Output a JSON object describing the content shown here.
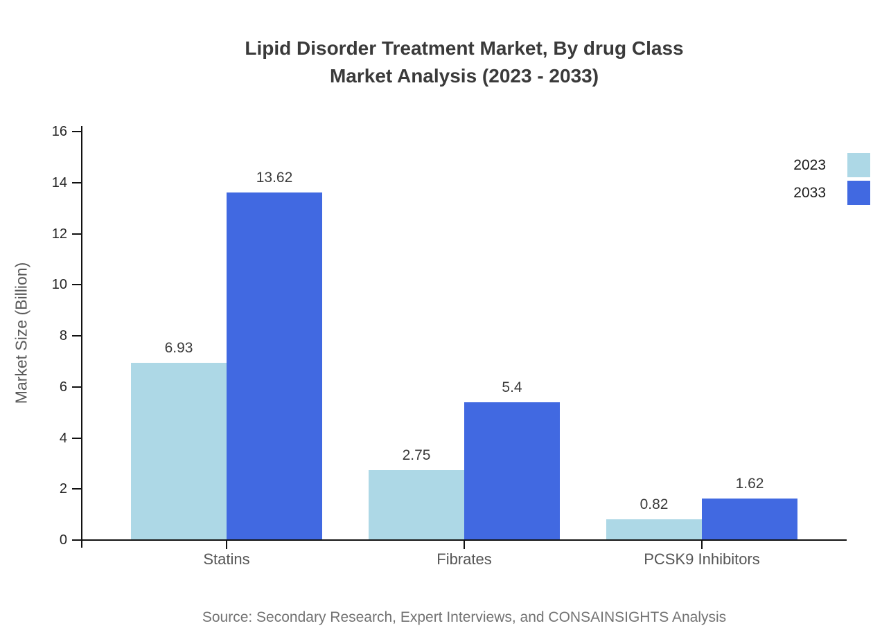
{
  "figure": {
    "title": "Lipid Disorder Treatment Market, By drug Class\nMarket Analysis (2023 - 2033)",
    "ylabel": "Market Size (Billion)",
    "source": "Source: Secondary Research, Expert Interviews, and CONSAINSIGHTS Analysis"
  },
  "chart_data": {
    "type": "bar",
    "title": "Lipid Disorder Treatment Market, By drug Class Market Analysis (2023 - 2033)",
    "xlabel": "",
    "ylabel": "Market Size (Billion)",
    "categories": [
      "Statins",
      "Fibrates",
      "PCSK9 Inhibitors"
    ],
    "series": [
      {
        "name": "2023",
        "color": "#ADD8E6",
        "values": [
          6.93,
          2.75,
          0.82
        ]
      },
      {
        "name": "2033",
        "color": "#4169E1",
        "values": [
          13.62,
          5.4,
          1.62
        ]
      }
    ],
    "ylim": [
      0,
      16
    ],
    "yticks": [
      0,
      2,
      4,
      6,
      8,
      10,
      12,
      14,
      16
    ],
    "grid": false,
    "bar_value_labels": true,
    "legend_position": "upper-right",
    "legend_labels": [
      "2023",
      "2033"
    ],
    "axis_color": "#111111",
    "background_color": "#ffffff"
  }
}
